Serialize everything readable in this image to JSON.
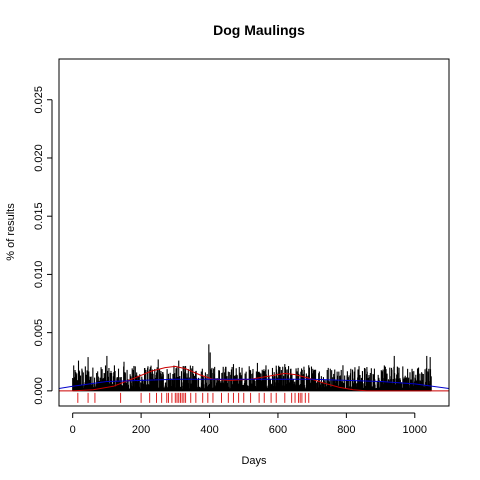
{
  "chart_data": {
    "type": "bar",
    "title": "Dog Maulings",
    "xlabel": "Days",
    "ylabel": "% of results",
    "xlim": [
      -40,
      1100
    ],
    "ylim": [
      -0.0013,
      0.0285
    ],
    "x_ticks": [
      0,
      200,
      400,
      600,
      800,
      1000
    ],
    "y_ticks": [
      0.0,
      0.005,
      0.01,
      0.015,
      0.02,
      0.025
    ],
    "y_tick_labels": [
      "0.000",
      "0.005",
      "0.010",
      "0.015",
      "0.020",
      "0.025"
    ],
    "grid": false,
    "legend": "none",
    "colors": {
      "bars": "#000000",
      "density": "#cc0000",
      "smooth": "#0000cc",
      "rug": "#dd2222"
    },
    "bars": {
      "x_start": 0,
      "x_end": 1048,
      "step": 1,
      "typical_max": 0.0022,
      "peaks": [
        {
          "x": 17,
          "y": 0.0026
        },
        {
          "x": 45,
          "y": 0.0029
        },
        {
          "x": 100,
          "y": 0.003
        },
        {
          "x": 150,
          "y": 0.0025
        },
        {
          "x": 250,
          "y": 0.0027
        },
        {
          "x": 310,
          "y": 0.0026
        },
        {
          "x": 398,
          "y": 0.004
        },
        {
          "x": 402,
          "y": 0.0033
        },
        {
          "x": 470,
          "y": 0.0023
        },
        {
          "x": 540,
          "y": 0.0024
        },
        {
          "x": 620,
          "y": 0.0023
        },
        {
          "x": 690,
          "y": 0.0022
        },
        {
          "x": 790,
          "y": 0.0022
        },
        {
          "x": 940,
          "y": 0.003
        },
        {
          "x": 1035,
          "y": 0.003
        },
        {
          "x": 1045,
          "y": 0.0029
        }
      ]
    },
    "series": [
      {
        "kind": "density",
        "x": [
          -40,
          0,
          60,
          120,
          180,
          230,
          270,
          300,
          330,
          370,
          410,
          460,
          520,
          580,
          620,
          650,
          690,
          730,
          780,
          820,
          860,
          920,
          1000,
          1100
        ],
        "y": [
          0.0,
          0.0,
          0.0001,
          0.0004,
          0.0011,
          0.0017,
          0.002,
          0.0021,
          0.0019,
          0.0014,
          0.001,
          0.0009,
          0.001,
          0.0013,
          0.0015,
          0.0014,
          0.0011,
          0.0007,
          0.0003,
          0.0001,
          0.0,
          0.0,
          0.0,
          0.0
        ]
      },
      {
        "kind": "smooth",
        "x": [
          -40,
          0,
          100,
          200,
          300,
          400,
          500,
          600,
          700,
          800,
          900,
          1000,
          1100
        ],
        "y": [
          0.0002,
          0.0004,
          0.0008,
          0.0009,
          0.001,
          0.001,
          0.001,
          0.001,
          0.001,
          0.0009,
          0.0008,
          0.0006,
          0.0002
        ]
      }
    ],
    "rug": [
      15,
      45,
      65,
      140,
      200,
      225,
      245,
      260,
      275,
      280,
      290,
      300,
      305,
      310,
      315,
      320,
      325,
      330,
      345,
      360,
      380,
      395,
      410,
      435,
      455,
      470,
      485,
      500,
      520,
      545,
      560,
      580,
      595,
      620,
      640,
      650,
      660,
      665,
      670,
      680,
      690
    ]
  }
}
